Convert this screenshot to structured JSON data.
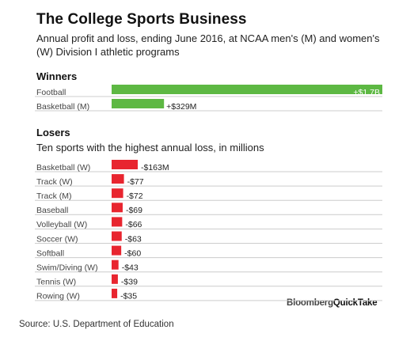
{
  "title": "The College Sports Business",
  "subtitle": "Annual profit and loss, ending June 2016, at NCAA men's (M) and women's (W) Division I athletic programs",
  "source": "Source: U.S. Department of Education",
  "brand": {
    "left": "Bloomberg",
    "right": "QuickTake"
  },
  "colors": {
    "winner": "#5db843",
    "loser": "#e8252f",
    "rule": "#cccccc"
  },
  "chart_data": [
    {
      "type": "bar",
      "orientation": "horizontal",
      "title": "Winners",
      "unit": "millions of dollars",
      "categories": [
        "Football",
        "Basketball (M)"
      ],
      "values": [
        1700,
        329
      ],
      "value_labels": [
        "+$1.7B",
        "+$329M"
      ]
    },
    {
      "type": "bar",
      "orientation": "horizontal",
      "title": "Losers",
      "subtitle": "Ten sports with the highest annual loss, in millions",
      "unit": "millions of dollars",
      "categories": [
        "Basketball (W)",
        "Track (W)",
        "Track (M)",
        "Baseball",
        "Volleyball (W)",
        "Soccer (W)",
        "Softball",
        "Swim/Diving (W)",
        "Tennis (W)",
        "Rowing (W)"
      ],
      "values": [
        -163,
        -77,
        -72,
        -69,
        -66,
        -63,
        -60,
        -43,
        -39,
        -35
      ],
      "value_labels": [
        "-$163M",
        "-$77",
        "-$72",
        "-$69",
        "-$66",
        "-$63",
        "-$60",
        "-$43",
        "-$39",
        "-$35"
      ]
    }
  ]
}
